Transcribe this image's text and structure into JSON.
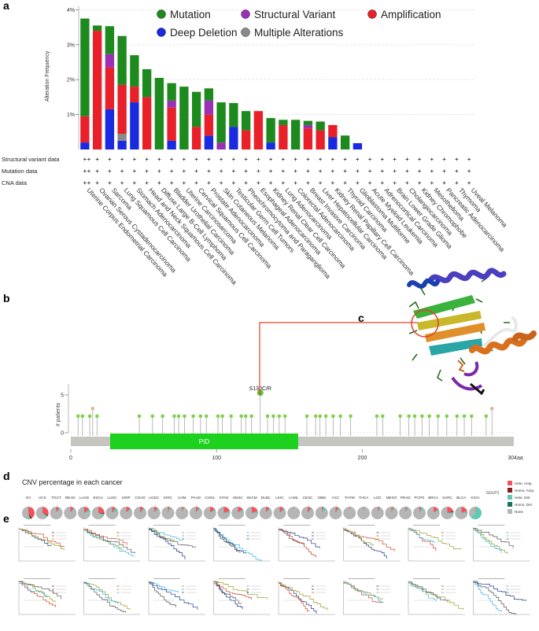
{
  "panel_labels": [
    "a",
    "b",
    "c",
    "d",
    "e"
  ],
  "chart_data": [
    {
      "panel": "a",
      "type": "bar",
      "stacked": true,
      "ylabel": "Alteration Frequency",
      "yticks": [
        "1%",
        "2%",
        "3%",
        "4%"
      ],
      "ylim": [
        0,
        4.1
      ],
      "grid": true,
      "legend_position": "top",
      "legend": [
        {
          "name": "Mutation",
          "color": "#1d8a1d"
        },
        {
          "name": "Structural Variant",
          "color": "#9b30b5"
        },
        {
          "name": "Amplification",
          "color": "#e8202a"
        },
        {
          "name": "Deep Deletion",
          "color": "#1a2ae0"
        },
        {
          "name": "Multiple Alterations",
          "color": "#8a8a8a"
        }
      ],
      "categories": [
        "Uterine Corpus Endometrial Carcinoma",
        "Ovarian Serous Cystadenocarcinoma",
        "Sarcoma",
        "Lung Squamous Cell Carcinoma",
        "Stomach Adenocarcinoma",
        "Head and Neck Squamous Cell Carcinoma",
        "Diffuse Large B-Cell Lymphoma",
        "Bladder Urothelial Carcinoma",
        "Uterine Carcinosarcoma",
        "Cervical Squamous Cell Carcinoma",
        "Prostate Adenocarcinoma",
        "Skin Cutaneous Melanoma",
        "Testicular Germ Cell Tumors",
        "Pheochromocytoma and Paraganglioma",
        "Esophageal Adenocarcinoma",
        "Kidney Renal Clear Cell Carcinoma",
        "Lung Adenocarcinoma",
        "Colorectal Adenocarcinoma",
        "Breast Invasive Carcinoma",
        "Liver Hepatocellular Carcinoma",
        "Kidney Renal Papillary Cell Carcinoma",
        "Thyroid Carcinoma",
        "Glioblastoma Multiforme",
        "Acute Myeloid Leukemia",
        "Adrenocortical Carcinoma",
        "Brain Lower Grade Glioma",
        "Cholangiocarcinoma",
        "Kidney Chromophobe",
        "Mesothelioma",
        "Pancreatic Adenocarcinoma",
        "Thymoma",
        "Uveal Melanoma"
      ],
      "series": [
        {
          "name": "Deep Deletion",
          "values": [
            0.2,
            0,
            1.15,
            0.25,
            1.35,
            0,
            0,
            0.25,
            0,
            0,
            0.4,
            0,
            0.65,
            0,
            0,
            0.2,
            0,
            0,
            0,
            0,
            0.35,
            0,
            0.18,
            0,
            0,
            0,
            0,
            0,
            0,
            0,
            0,
            0
          ]
        },
        {
          "name": "Multiple Alterations",
          "values": [
            0,
            0,
            0,
            0.2,
            0,
            0,
            0,
            0,
            0,
            0,
            0,
            0,
            0,
            0,
            0,
            0,
            0,
            0,
            0,
            0,
            0,
            0,
            0,
            0,
            0,
            0,
            0,
            0,
            0,
            0,
            0,
            0
          ]
        },
        {
          "name": "Amplification",
          "values": [
            0.75,
            3.4,
            1.2,
            1.4,
            0.45,
            1.5,
            0,
            0.95,
            0,
            0.65,
            0.6,
            0,
            0,
            0.55,
            1.1,
            0,
            0.7,
            0,
            0.6,
            0.55,
            0.35,
            0,
            0,
            0,
            0,
            0,
            0,
            0,
            0,
            0,
            0,
            0
          ]
        },
        {
          "name": "Structural Variant",
          "values": [
            0,
            0,
            0.38,
            0,
            0,
            0,
            0,
            0.2,
            0,
            0,
            0.4,
            0.2,
            0,
            0,
            0,
            0,
            0,
            0,
            0.1,
            0,
            0,
            0,
            0,
            0,
            0,
            0,
            0,
            0,
            0,
            0,
            0,
            0
          ]
        },
        {
          "name": "Mutation",
          "values": [
            2.8,
            0.15,
            0.8,
            1.4,
            0.9,
            0.8,
            2.05,
            0.5,
            1.8,
            1.0,
            0.35,
            1.15,
            0.68,
            0.55,
            0,
            0.7,
            0.15,
            0.85,
            0.12,
            0.25,
            0,
            0.4,
            0,
            0,
            0,
            0,
            0,
            0,
            0,
            0,
            0,
            0
          ]
        }
      ],
      "matrix_rows": [
        "Structural variant data",
        "Mutation data",
        "CNA data"
      ],
      "matrix_symbol": "+"
    },
    {
      "panel": "b",
      "type": "scatter",
      "subtype": "lollipop",
      "ylabel": "# patients",
      "yticks": [
        0,
        5
      ],
      "xticks": [
        0,
        100,
        200
      ],
      "x_end_label": "304aa",
      "xlim": [
        0,
        304
      ],
      "ylim": [
        0,
        5.5
      ],
      "domain": {
        "name": "PID",
        "start": 27,
        "end": 156,
        "color": "#1ed11e"
      },
      "hotspot_label": "S130C/R",
      "mutations": [
        {
          "pos": 5,
          "count": 1,
          "color": "#7fd14a"
        },
        {
          "pos": 8,
          "count": 1,
          "color": "#7fd14a"
        },
        {
          "pos": 13,
          "count": 1,
          "color": "#7fd14a"
        },
        {
          "pos": 15,
          "count": 2,
          "color": "#d8b8a0"
        },
        {
          "pos": 18,
          "count": 1,
          "color": "#7fd14a"
        },
        {
          "pos": 47,
          "count": 1,
          "color": "#7fd14a"
        },
        {
          "pos": 56,
          "count": 1,
          "color": "#7fd14a"
        },
        {
          "pos": 63,
          "count": 1,
          "color": "#7fd14a"
        },
        {
          "pos": 71,
          "count": 1,
          "color": "#7fd14a"
        },
        {
          "pos": 74,
          "count": 1,
          "color": "#7fd14a"
        },
        {
          "pos": 78,
          "count": 1,
          "color": "#7fd14a"
        },
        {
          "pos": 84,
          "count": 1,
          "color": "#7fd14a"
        },
        {
          "pos": 89,
          "count": 1,
          "color": "#7fd14a"
        },
        {
          "pos": 93,
          "count": 1,
          "color": "#7fd14a"
        },
        {
          "pos": 101,
          "count": 1,
          "color": "#7fd14a"
        },
        {
          "pos": 104,
          "count": 1,
          "color": "#7fd14a"
        },
        {
          "pos": 110,
          "count": 1,
          "color": "#7fd14a"
        },
        {
          "pos": 117,
          "count": 1,
          "color": "#7fd14a"
        },
        {
          "pos": 120,
          "count": 1,
          "color": "#7fd14a"
        },
        {
          "pos": 124,
          "count": 1,
          "color": "#7fd14a"
        },
        {
          "pos": 130,
          "count": 3,
          "color": "#5dc235"
        },
        {
          "pos": 135,
          "count": 1,
          "color": "#7fd14a"
        },
        {
          "pos": 139,
          "count": 1,
          "color": "#7fd14a"
        },
        {
          "pos": 143,
          "count": 1,
          "color": "#7fd14a"
        },
        {
          "pos": 147,
          "count": 1,
          "color": "#7fd14a"
        },
        {
          "pos": 162,
          "count": 1,
          "color": "#7fd14a"
        },
        {
          "pos": 168,
          "count": 1,
          "color": "#7fd14a"
        },
        {
          "pos": 171,
          "count": 1,
          "color": "#7fd14a"
        },
        {
          "pos": 175,
          "count": 1,
          "color": "#7fd14a"
        },
        {
          "pos": 180,
          "count": 1,
          "color": "#7fd14a"
        },
        {
          "pos": 185,
          "count": 1,
          "color": "#7fd14a"
        },
        {
          "pos": 192,
          "count": 1,
          "color": "#7fd14a"
        },
        {
          "pos": 210,
          "count": 1,
          "color": "#7fd14a"
        },
        {
          "pos": 214,
          "count": 1,
          "color": "#7fd14a"
        },
        {
          "pos": 226,
          "count": 1,
          "color": "#7fd14a"
        },
        {
          "pos": 232,
          "count": 1,
          "color": "#7fd14a"
        },
        {
          "pos": 236,
          "count": 1,
          "color": "#7fd14a"
        },
        {
          "pos": 241,
          "count": 1,
          "color": "#7fd14a"
        },
        {
          "pos": 246,
          "count": 1,
          "color": "#7fd14a"
        },
        {
          "pos": 252,
          "count": 1,
          "color": "#7fd14a"
        },
        {
          "pos": 258,
          "count": 1,
          "color": "#7fd14a"
        },
        {
          "pos": 265,
          "count": 1,
          "color": "#7fd14a"
        },
        {
          "pos": 270,
          "count": 1,
          "color": "#7fd14a"
        },
        {
          "pos": 275,
          "count": 1,
          "color": "#7fd14a"
        },
        {
          "pos": 285,
          "count": 1,
          "color": "#7fd14a"
        },
        {
          "pos": 289,
          "count": 2,
          "color": "#d8b8a0"
        }
      ]
    },
    {
      "panel": "d",
      "type": "pie",
      "title": "CNV percentage in each cancer",
      "gene": "GULP1",
      "legend": [
        {
          "name": "Hete. Amp.",
          "color": "#f0545c"
        },
        {
          "name": "Homo. Amp.",
          "color": "#8b1c1c"
        },
        {
          "name": "Hete. Del.",
          "color": "#5ec9b4"
        },
        {
          "name": "Homo. Del.",
          "color": "#1b6f63"
        },
        {
          "name": "None",
          "color": "#b5b5b5"
        }
      ],
      "cancers": [
        {
          "name": "OV",
          "hete_amp": 0.4,
          "homo_amp": 0.05,
          "hete_del": 0.05
        },
        {
          "name": "UCS",
          "hete_amp": 0.3,
          "homo_amp": 0.03,
          "hete_del": 0.05
        },
        {
          "name": "TGCT",
          "hete_amp": 0.08,
          "homo_amp": 0,
          "hete_del": 0.05
        },
        {
          "name": "READ",
          "hete_amp": 0.1,
          "homo_amp": 0,
          "hete_del": 0.05
        },
        {
          "name": "LUAD",
          "hete_amp": 0.15,
          "homo_amp": 0,
          "hete_del": 0.08
        },
        {
          "name": "ESCA",
          "hete_amp": 0.25,
          "homo_amp": 0.03,
          "hete_del": 0.05
        },
        {
          "name": "LUSC",
          "hete_amp": 0.1,
          "homo_amp": 0,
          "hete_del": 0.1
        },
        {
          "name": "KIRP",
          "hete_amp": 0.12,
          "homo_amp": 0,
          "hete_del": 0.05
        },
        {
          "name": "COAD",
          "hete_amp": 0.1,
          "homo_amp": 0,
          "hete_del": 0.05
        },
        {
          "name": "UCEC",
          "hete_amp": 0.1,
          "homo_amp": 0,
          "hete_del": 0.05
        },
        {
          "name": "KIRC",
          "hete_amp": 0.05,
          "homo_amp": 0,
          "hete_del": 0.05
        },
        {
          "name": "UVM",
          "hete_amp": 0.05,
          "homo_amp": 0,
          "hete_del": 0.03
        },
        {
          "name": "PAAD",
          "hete_amp": 0.08,
          "homo_amp": 0,
          "hete_del": 0.05
        },
        {
          "name": "CHOL",
          "hete_amp": 0.15,
          "homo_amp": 0,
          "hete_del": 0.05
        },
        {
          "name": "STAD",
          "hete_amp": 0.2,
          "homo_amp": 0,
          "hete_del": 0.05
        },
        {
          "name": "HNSC",
          "hete_amp": 0.15,
          "homo_amp": 0,
          "hete_del": 0.05
        },
        {
          "name": "SKCM",
          "hete_amp": 0.2,
          "homo_amp": 0,
          "hete_del": 0.05
        },
        {
          "name": "DLBC",
          "hete_amp": 0.1,
          "homo_amp": 0,
          "hete_del": 0.05
        },
        {
          "name": "LIHC",
          "hete_amp": 0.12,
          "homo_amp": 0,
          "hete_del": 0.05
        },
        {
          "name": "LAML",
          "hete_amp": 0.02,
          "homo_amp": 0,
          "hete_del": 0.02
        },
        {
          "name": "CESC",
          "hete_amp": 0.1,
          "homo_amp": 0,
          "hete_del": 0.05
        },
        {
          "name": "GBM",
          "hete_amp": 0.05,
          "homo_amp": 0,
          "hete_del": 0.1
        },
        {
          "name": "ACC",
          "hete_amp": 0.08,
          "homo_amp": 0,
          "hete_del": 0.05
        },
        {
          "name": "THYM",
          "hete_amp": 0.03,
          "homo_amp": 0,
          "hete_del": 0.02
        },
        {
          "name": "THCA",
          "hete_amp": 0.02,
          "homo_amp": 0,
          "hete_del": 0.02
        },
        {
          "name": "LGG",
          "hete_amp": 0.05,
          "homo_amp": 0,
          "hete_del": 0.05
        },
        {
          "name": "MESO",
          "hete_amp": 0.05,
          "homo_amp": 0,
          "hete_del": 0.05
        },
        {
          "name": "PRAD",
          "hete_amp": 0.05,
          "homo_amp": 0,
          "hete_del": 0.05
        },
        {
          "name": "PCPG",
          "hete_amp": 0.05,
          "homo_amp": 0,
          "hete_del": 0.08
        },
        {
          "name": "BRCA",
          "hete_amp": 0.15,
          "homo_amp": 0,
          "hete_del": 0.05
        },
        {
          "name": "SARC",
          "hete_amp": 0.2,
          "homo_amp": 0.03,
          "hete_del": 0.05
        },
        {
          "name": "BLCA",
          "hete_amp": 0.2,
          "homo_amp": 0,
          "hete_del": 0.05
        },
        {
          "name": "KICH",
          "hete_amp": 0.02,
          "homo_amp": 0,
          "hete_del": 0.6
        }
      ]
    },
    {
      "panel": "e",
      "type": "line",
      "subtype": "kaplan-meier grid",
      "rows": 2,
      "columns": 8,
      "colors": [
        "#1f3a8a",
        "#d1472b",
        "#9aa02a",
        "#3fb7e0",
        "#555555"
      ]
    }
  ]
}
